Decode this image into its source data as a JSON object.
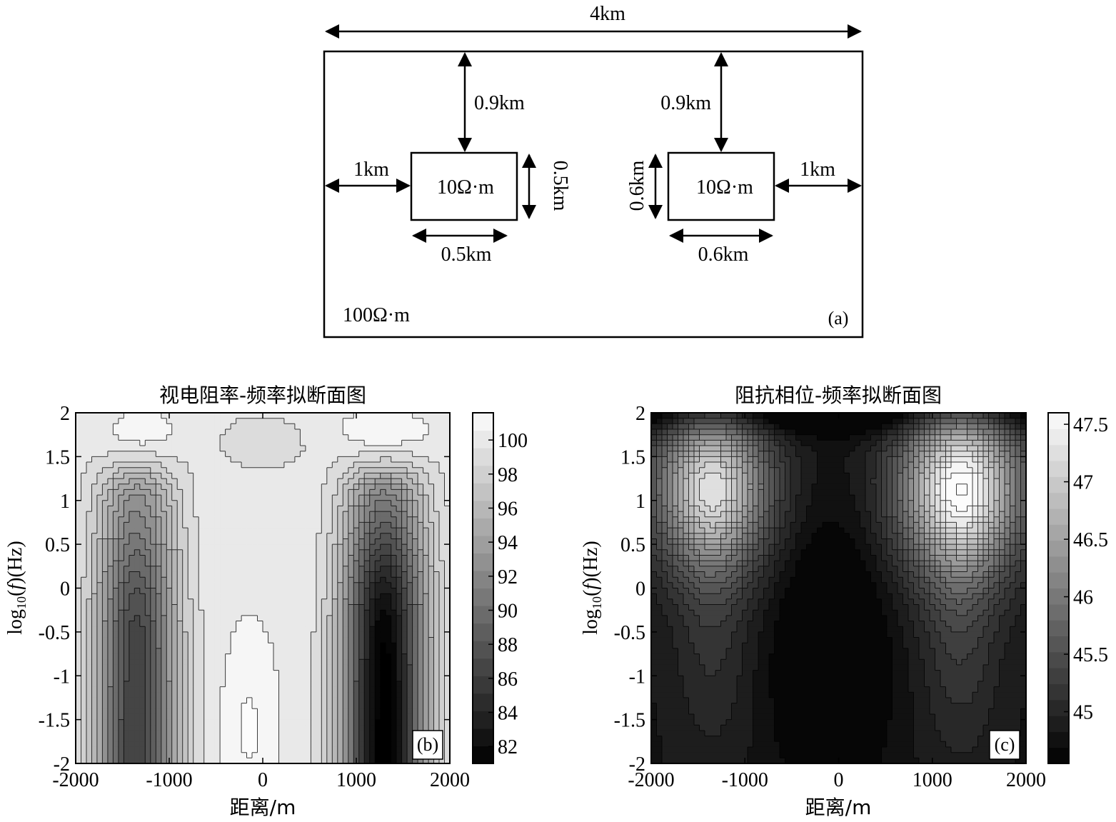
{
  "diagram": {
    "top_width_label": "4km",
    "left_block": {
      "resistivity": "10Ω·m",
      "depth_label": "0.9km",
      "offset_label": "1km",
      "height_label": "0.5km",
      "width_label": "0.5km"
    },
    "right_block": {
      "resistivity": "10Ω·m",
      "depth_label": "0.9km",
      "offset_label": "1km",
      "height_label": "0.6km",
      "width_label": "0.6km"
    },
    "background_resistivity": "100Ω·m",
    "panel_label": "(a)"
  },
  "chart_data": [
    {
      "type": "heatmap",
      "title": "视电阻率-频率拟断面图",
      "xlabel": "距离/m",
      "ylabel_parts": {
        "base": "log",
        "sub": "10",
        "mid": "(",
        "var": "f",
        "tail": ")(Hz)"
      },
      "panel_label": "(b)",
      "xlim": [
        -2000,
        2000
      ],
      "ylim": [
        -2,
        2
      ],
      "xticks": [
        "-2000",
        "-1000",
        "0",
        "1000",
        "2000"
      ],
      "yticks": [
        "2",
        "1.5",
        "1",
        "0.5",
        "0",
        "-0.5",
        "-1",
        "-1.5",
        "-2"
      ],
      "colorbar": {
        "min": 81.0,
        "max": 101.6,
        "ticks": [
          "100",
          "98",
          "96",
          "94",
          "92",
          "90",
          "88",
          "86",
          "84",
          "82"
        ]
      },
      "levels": 20,
      "sample_points": [
        {
          "x": -1300,
          "y": 1.8,
          "value": 101.2
        },
        {
          "x": 1300,
          "y": 1.8,
          "value": 101.4
        },
        {
          "x": -1350,
          "y": -1.5,
          "value": 85.5
        },
        {
          "x": 1300,
          "y": -1.5,
          "value": 81.0
        },
        {
          "x": -150,
          "y": -1.5,
          "value": 101.5
        },
        {
          "x": 0,
          "y": 1.0,
          "value": 97.0
        }
      ]
    },
    {
      "type": "heatmap",
      "title": "阻抗相位-频率拟断面图",
      "xlabel": "距离/m",
      "ylabel_parts": {
        "base": "log",
        "sub": "10",
        "mid": "(",
        "var": "f",
        "tail": ")(Hz)"
      },
      "panel_label": "(c)",
      "xlim": [
        -2000,
        2000
      ],
      "ylim": [
        -2,
        2
      ],
      "xticks": [
        "-2000",
        "-1000",
        "0",
        "1000",
        "2000"
      ],
      "yticks": [
        "2",
        "1.5",
        "1",
        "0.5",
        "0",
        "-0.5",
        "-1",
        "-1.5",
        "-2"
      ],
      "colorbar": {
        "min": 44.55,
        "max": 47.6,
        "ticks": [
          "47.5",
          "47",
          "46.5",
          "46",
          "45.5",
          "45"
        ]
      },
      "levels": 22,
      "sample_points": [
        {
          "x": -1350,
          "y": 1.15,
          "value": 47.2
        },
        {
          "x": 1300,
          "y": 1.15,
          "value": 47.5
        },
        {
          "x": -100,
          "y": -1.0,
          "value": 44.55
        },
        {
          "x": -1350,
          "y": -1.5,
          "value": 45.0
        },
        {
          "x": 1300,
          "y": -1.5,
          "value": 45.2
        }
      ]
    }
  ]
}
